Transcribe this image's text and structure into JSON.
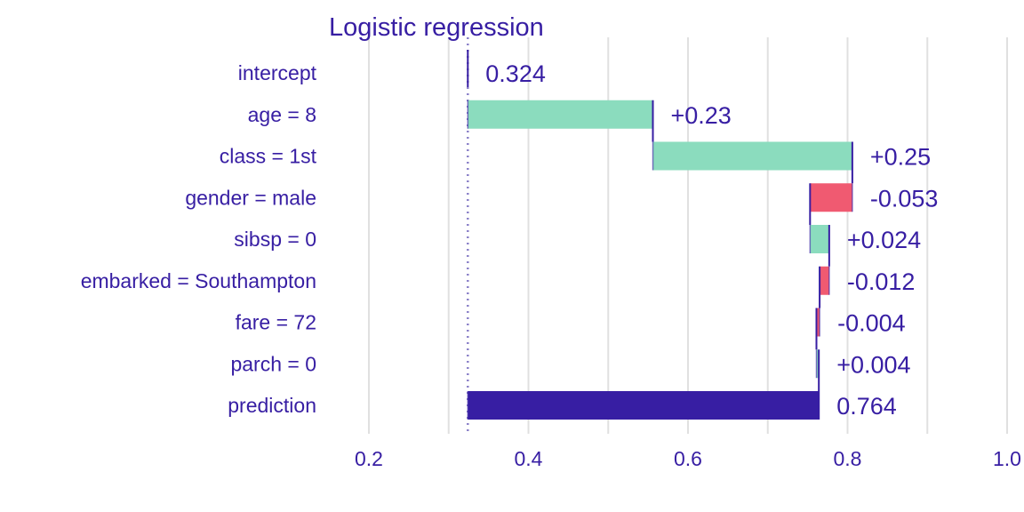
{
  "chart_data": {
    "type": "bar",
    "subtype": "waterfall-break-down",
    "title": "Logistic regression",
    "xlabel": "",
    "ylabel": "",
    "xlim": [
      0.2,
      1.0
    ],
    "x_ticks": [
      0.2,
      0.4,
      0.6,
      0.8,
      1.0
    ],
    "x_tick_labels": [
      "0.2",
      "0.4",
      "0.6",
      "0.8",
      "1.0"
    ],
    "grid": "vertical",
    "baseline": 0.324,
    "categories": [
      "intercept",
      "age = 8",
      "class = 1st",
      "gender = male",
      "sibsp = 0",
      "embarked = Southampton",
      "fare = 72",
      "parch = 0",
      "prediction"
    ],
    "bars": [
      {
        "label": "intercept",
        "start": 0.324,
        "end": 0.324,
        "value_label": "0.324",
        "kind": "intercept"
      },
      {
        "label": "age = 8",
        "start": 0.324,
        "end": 0.556,
        "value_label": "+0.23",
        "kind": "positive"
      },
      {
        "label": "class = 1st",
        "start": 0.556,
        "end": 0.806,
        "value_label": "+0.25",
        "kind": "positive"
      },
      {
        "label": "gender = male",
        "start": 0.806,
        "end": 0.753,
        "value_label": "-0.053",
        "kind": "negative"
      },
      {
        "label": "sibsp = 0",
        "start": 0.753,
        "end": 0.777,
        "value_label": "+0.024",
        "kind": "positive"
      },
      {
        "label": "embarked = Southampton",
        "start": 0.777,
        "end": 0.765,
        "value_label": "-0.012",
        "kind": "negative"
      },
      {
        "label": "fare = 72",
        "start": 0.765,
        "end": 0.761,
        "value_label": "-0.004",
        "kind": "negative"
      },
      {
        "label": "parch = 0",
        "start": 0.761,
        "end": 0.764,
        "value_label": "+0.004",
        "kind": "positive"
      },
      {
        "label": "prediction",
        "start": 0.324,
        "end": 0.764,
        "value_label": "0.764",
        "kind": "prediction"
      }
    ],
    "colors": {
      "positive": "#8bdcbe",
      "negative": "#f05a71",
      "prediction": "#371ea3",
      "text": "#371ea3",
      "grid": "#e0e0e0",
      "baseline_line": "#8a80c8"
    }
  }
}
